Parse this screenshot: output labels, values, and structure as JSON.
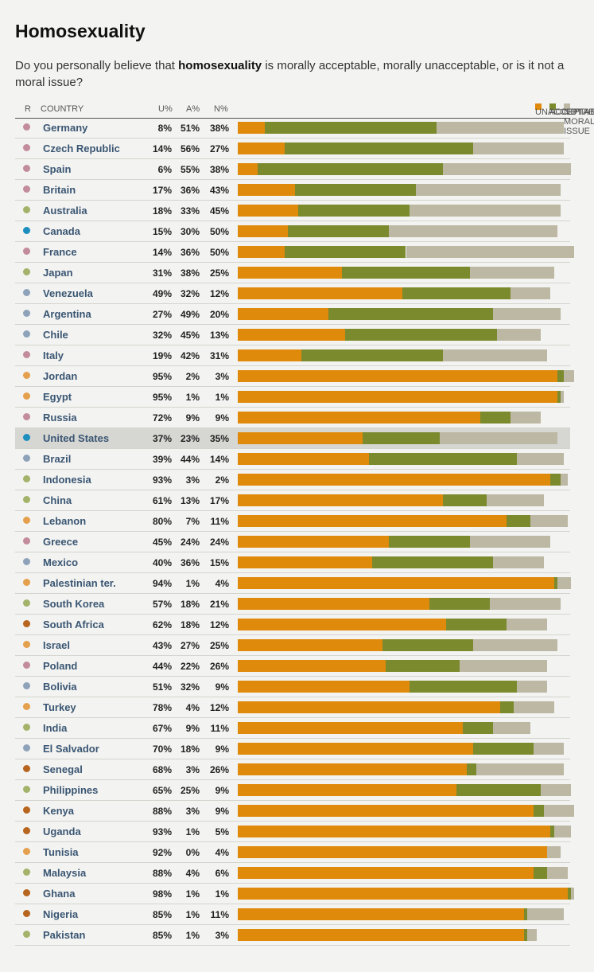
{
  "title": "Homosexuality",
  "question": {
    "before": "Do you personally believe that ",
    "bold": "homosexuality",
    "after": " is morally acceptable, morally unacceptable, or is it not a moral issue?"
  },
  "header": {
    "r": "R",
    "country": "COUNTRY",
    "u": "U%",
    "a": "A%",
    "n": "N%"
  },
  "colors": {
    "unacceptable": "#e08a0b",
    "acceptable": "#7c8a2e",
    "not_moral": "#bcb8a4",
    "region": {
      "europe": "#c28c9d",
      "asia": "#a3b36a",
      "north_america": "#1c8fbf",
      "latin_america": "#8ea3ba",
      "middle_east": "#e5a04e",
      "africa": "#b8651f"
    }
  },
  "chart_data": {
    "type": "bar",
    "stacked": true,
    "orientation": "horizontal",
    "title": "Homosexuality",
    "legend": [
      "UNACCEPTABLE",
      "ACCEPTABLE",
      "NOT A MORAL ISSUE"
    ],
    "legend_position": "top-right",
    "categories": [
      "Germany",
      "Czech Republic",
      "Spain",
      "Britain",
      "Australia",
      "Canada",
      "France",
      "Japan",
      "Venezuela",
      "Argentina",
      "Chile",
      "Italy",
      "Jordan",
      "Egypt",
      "Russia",
      "United States",
      "Brazil",
      "Indonesia",
      "China",
      "Lebanon",
      "Greece",
      "Mexico",
      "Palestinian ter.",
      "South Korea",
      "South Africa",
      "Israel",
      "Poland",
      "Bolivia",
      "Turkey",
      "India",
      "El Salvador",
      "Senegal",
      "Philippines",
      "Kenya",
      "Uganda",
      "Tunisia",
      "Malaysia",
      "Ghana",
      "Nigeria",
      "Pakistan"
    ],
    "regions": [
      "europe",
      "europe",
      "europe",
      "europe",
      "asia",
      "north_america",
      "europe",
      "asia",
      "latin_america",
      "latin_america",
      "latin_america",
      "europe",
      "middle_east",
      "middle_east",
      "europe",
      "north_america",
      "latin_america",
      "asia",
      "asia",
      "middle_east",
      "europe",
      "latin_america",
      "middle_east",
      "asia",
      "africa",
      "middle_east",
      "europe",
      "latin_america",
      "middle_east",
      "asia",
      "latin_america",
      "africa",
      "asia",
      "africa",
      "africa",
      "middle_east",
      "asia",
      "africa",
      "africa",
      "asia"
    ],
    "series": [
      {
        "name": "UNACCEPTABLE",
        "values": [
          8,
          14,
          6,
          17,
          18,
          15,
          14,
          31,
          49,
          27,
          32,
          19,
          95,
          95,
          72,
          37,
          39,
          93,
          61,
          80,
          45,
          40,
          94,
          57,
          62,
          43,
          44,
          51,
          78,
          67,
          70,
          68,
          65,
          88,
          93,
          92,
          88,
          98,
          85,
          85
        ]
      },
      {
        "name": "ACCEPTABLE",
        "values": [
          51,
          56,
          55,
          36,
          33,
          30,
          36,
          38,
          32,
          49,
          45,
          42,
          2,
          1,
          9,
          23,
          44,
          3,
          13,
          7,
          24,
          36,
          1,
          18,
          18,
          27,
          22,
          32,
          4,
          9,
          18,
          3,
          25,
          3,
          1,
          0,
          4,
          1,
          1,
          1
        ]
      },
      {
        "name": "NOT A MORAL ISSUE",
        "values": [
          38,
          27,
          38,
          43,
          45,
          50,
          50,
          25,
          12,
          20,
          13,
          31,
          3,
          1,
          9,
          35,
          14,
          2,
          17,
          11,
          24,
          15,
          4,
          21,
          12,
          25,
          26,
          9,
          12,
          11,
          9,
          26,
          9,
          9,
          5,
          4,
          6,
          1,
          11,
          3
        ]
      }
    ],
    "highlight": "United States",
    "xlim": [
      0,
      100
    ]
  }
}
